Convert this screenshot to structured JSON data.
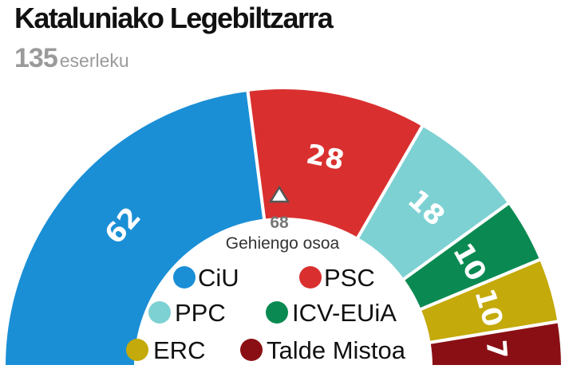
{
  "header": {
    "title": "Kataluniako Legebiltzarra",
    "seats_total": "135",
    "seats_unit": "eserleku"
  },
  "chart_data": {
    "type": "parliament",
    "title": "Kataluniako Legebiltzarra",
    "total_seats": 135,
    "majority": {
      "value": "68",
      "label": "Gehiengo osoa"
    },
    "series": [
      {
        "name": "CiU",
        "value": 62,
        "color": "#1a8fd6"
      },
      {
        "name": "PSC",
        "value": 28,
        "color": "#d9302f"
      },
      {
        "name": "PPC",
        "value": 18,
        "color": "#7dd1d3"
      },
      {
        "name": "ICV-EUiA",
        "value": 10,
        "color": "#0a8a52"
      },
      {
        "name": "ERC",
        "value": 10,
        "color": "#c4aa0a"
      },
      {
        "name": "Talde Mistoa",
        "value": 7,
        "color": "#8a0f14"
      }
    ],
    "legend": "center"
  }
}
